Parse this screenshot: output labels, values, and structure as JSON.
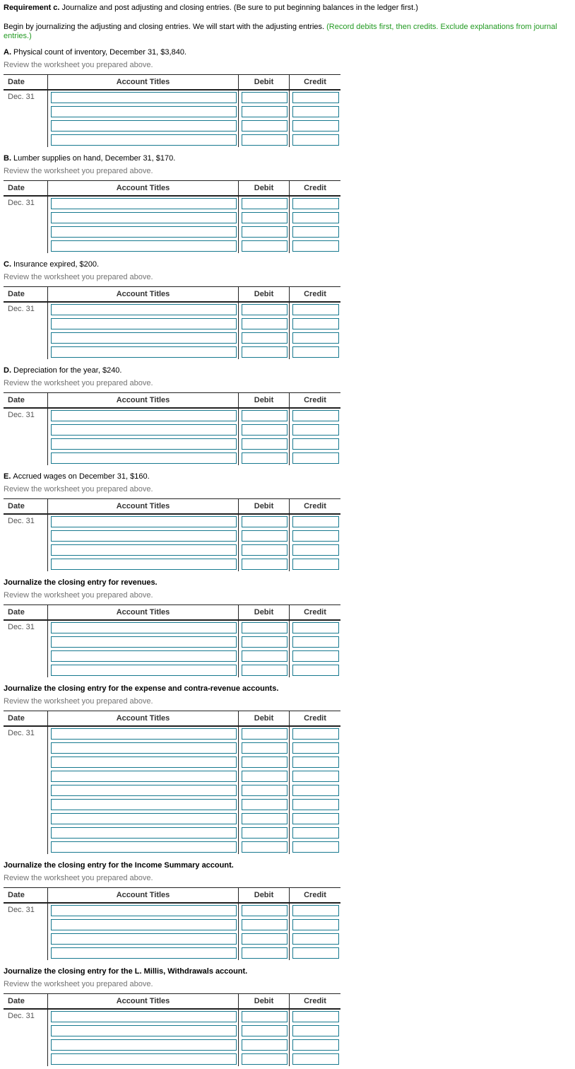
{
  "colors": {
    "accent_teal": "#17798F",
    "instruction_green": "#229A22",
    "muted_gray": "#737373",
    "line_dark": "#222222",
    "header_text": "#333333",
    "date_text": "#555555"
  },
  "header": {
    "requirement_label": "Requirement c.",
    "requirement_text": "Journalize and post adjusting and closing entries. (Be sure to put beginning balances in the ledger first.)",
    "intro_text": "Begin by journalizing the adjusting and closing entries. We will start with the adjusting entries.",
    "intro_instruction": "(Record debits first, then credits. Exclude explanations from journal entries.)"
  },
  "review_note": "Review the worksheet you prepared above.",
  "journal_table": {
    "columns": [
      "Date",
      "Account Titles",
      "Debit",
      "Credit"
    ],
    "date_value": "Dec. 31"
  },
  "sections": [
    {
      "id": "a",
      "title_prefix": "A.",
      "title_rest": "Physical count of inventory, December 31, $3,840.",
      "bold_full": false,
      "rows": 4
    },
    {
      "id": "b",
      "title_prefix": "B.",
      "title_rest": "Lumber supplies on hand, December 31, $170.",
      "bold_full": false,
      "rows": 4
    },
    {
      "id": "c",
      "title_prefix": "C.",
      "title_rest": "Insurance expired, $200.",
      "bold_full": false,
      "rows": 4
    },
    {
      "id": "d",
      "title_prefix": "D.",
      "title_rest": "Depreciation for the year, $240.",
      "bold_full": false,
      "rows": 4
    },
    {
      "id": "e",
      "title_prefix": "E.",
      "title_rest": "Accrued wages on December 31, $160.",
      "bold_full": false,
      "rows": 4
    },
    {
      "id": "closing-revenues",
      "title_prefix": "",
      "title_rest": "Journalize the closing entry for revenues.",
      "bold_full": true,
      "rows": 4
    },
    {
      "id": "closing-expenses",
      "title_prefix": "",
      "title_rest": "Journalize the closing entry for the expense and contra-revenue accounts.",
      "bold_full": true,
      "rows": 9
    },
    {
      "id": "closing-income-summary",
      "title_prefix": "",
      "title_rest": "Journalize the closing entry for the Income Summary account.",
      "bold_full": true,
      "rows": 4
    },
    {
      "id": "closing-withdrawals",
      "title_prefix": "",
      "title_rest": "Journalize the closing entry for the L. Millis, Withdrawals account.",
      "bold_full": true,
      "rows": 4
    }
  ]
}
